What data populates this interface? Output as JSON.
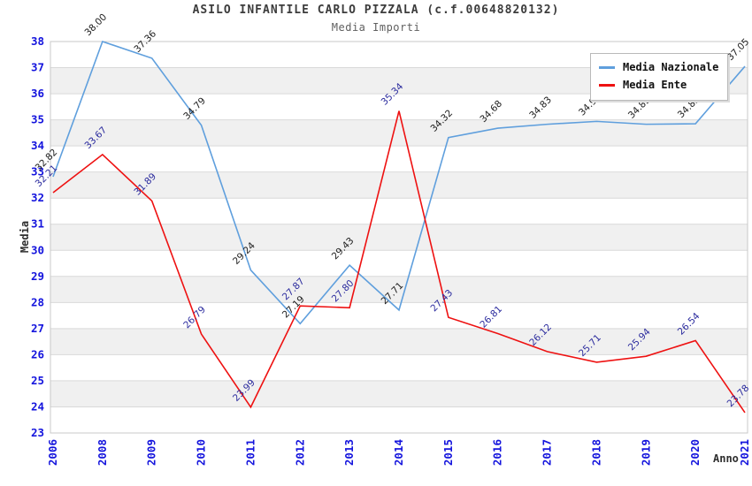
{
  "chart_data": {
    "type": "line",
    "title": "ASILO INFANTILE CARLO PIZZALA (c.f.00648820132)",
    "subtitle": "Media Importi",
    "xlabel": "Anno",
    "ylabel": "Media",
    "categories": [
      "2006",
      "2008",
      "2009",
      "2010",
      "2011",
      "2012",
      "2013",
      "2014",
      "2015",
      "2016",
      "2017",
      "2018",
      "2019",
      "2020",
      "2021"
    ],
    "series": [
      {
        "name": "Media Nazionale",
        "color": "#5f9fdd",
        "label_color": "#1c1c1c",
        "values": [
          32.82,
          38.0,
          37.36,
          34.79,
          29.24,
          27.19,
          29.43,
          27.71,
          34.32,
          34.68,
          34.83,
          34.94,
          34.83,
          34.85,
          37.05
        ]
      },
      {
        "name": "Media Ente",
        "color": "#ee1111",
        "label_color": "#2b2b9e",
        "values": [
          32.21,
          33.67,
          31.89,
          26.79,
          23.99,
          27.87,
          27.8,
          35.34,
          27.43,
          26.81,
          26.12,
          25.71,
          25.94,
          26.54,
          23.78
        ]
      }
    ],
    "ylim": [
      23,
      38
    ],
    "y_step": 1,
    "x_tick_rotation": -90,
    "value_label_rotation": -45,
    "grid": true,
    "legend_position": "top-right",
    "axis_tick_color": "#1414dd",
    "band_colors": [
      "#ffffff",
      "#f0f0f0"
    ],
    "grid_color": "#d9d9d9",
    "border_color": "#c8c8c8"
  }
}
